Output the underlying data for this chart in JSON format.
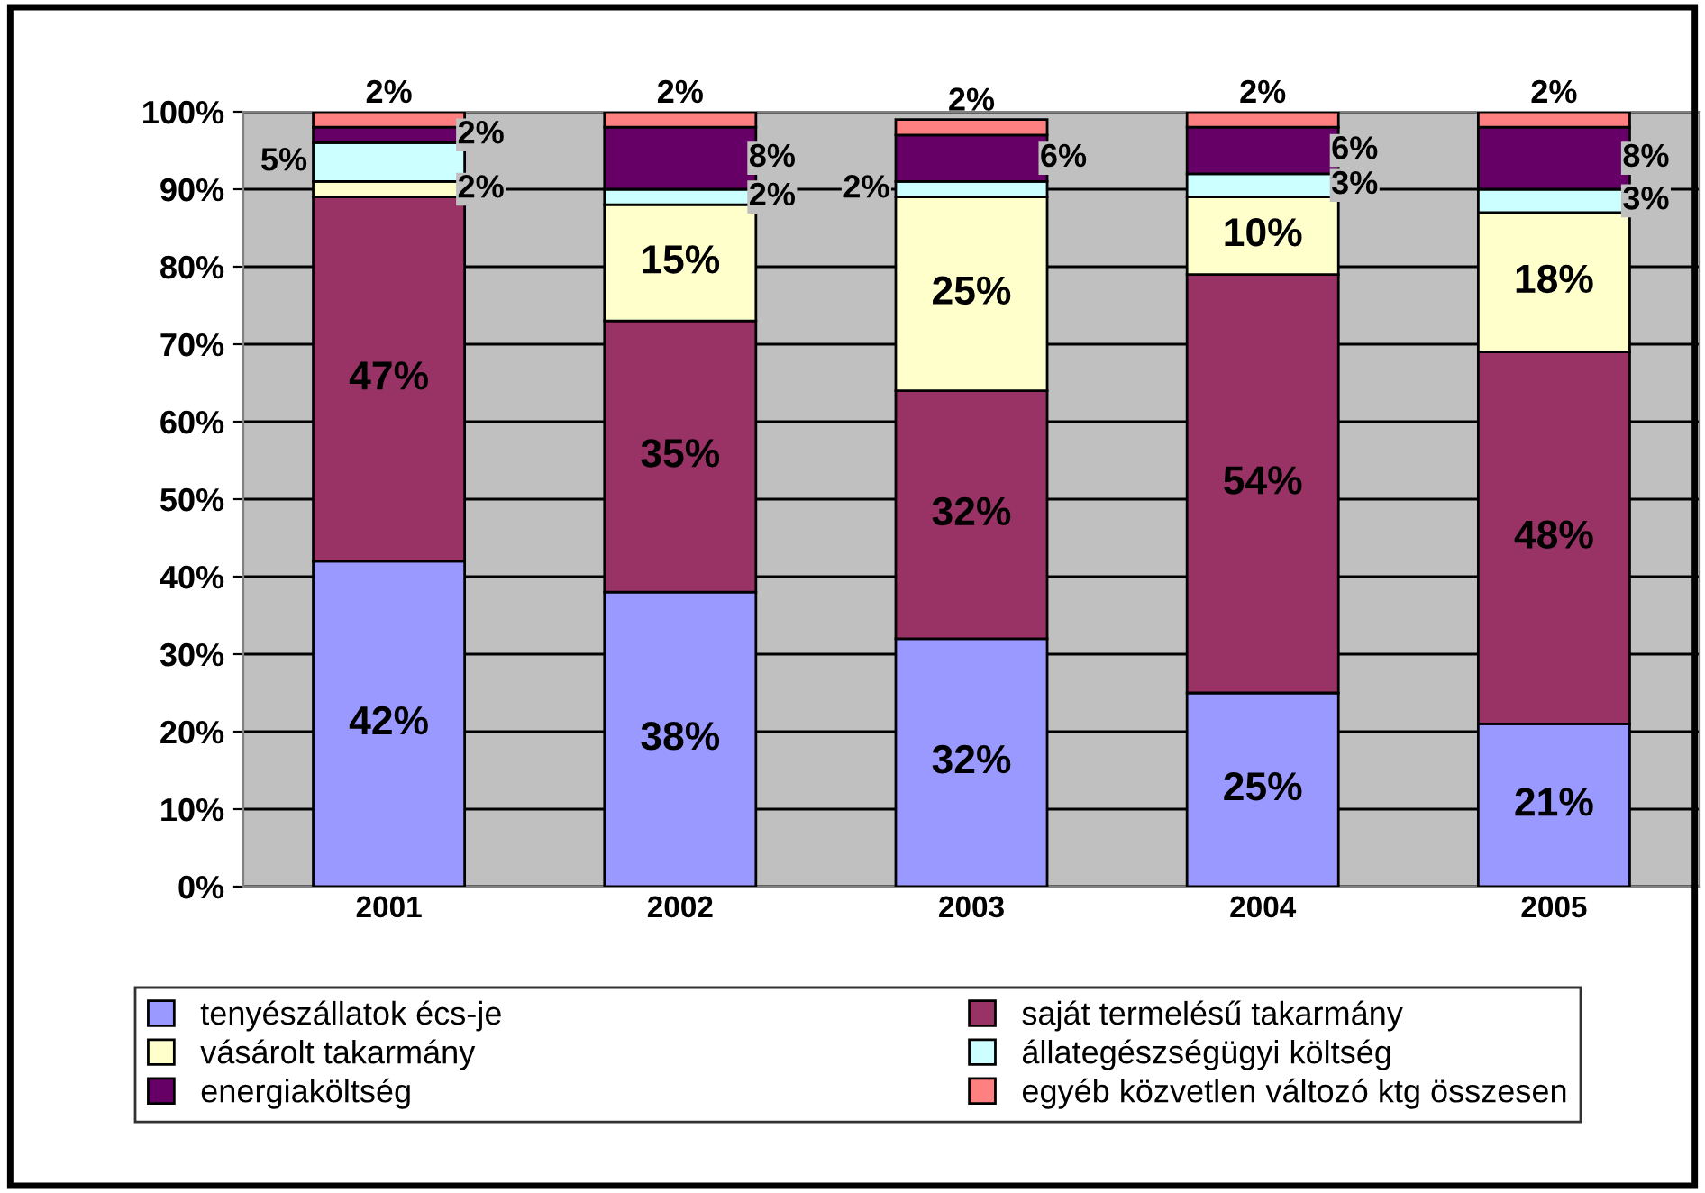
{
  "chart_data": {
    "type": "bar",
    "stacked": true,
    "categories": [
      "2001",
      "2002",
      "2003",
      "2004",
      "2005"
    ],
    "series": [
      {
        "name": "tenyészállatok écs-je",
        "color": "#9999ff",
        "values": [
          42,
          38,
          32,
          25,
          21
        ],
        "value_labels": [
          "42%",
          "38%",
          "32%",
          "25%",
          "21%"
        ]
      },
      {
        "name": "saját termelésű takarmány",
        "color": "#993366",
        "values": [
          47,
          35,
          32,
          54,
          48
        ],
        "value_labels": [
          "47%",
          "35%",
          "32%",
          "54%",
          "48%"
        ]
      },
      {
        "name": "vásárolt takarmány",
        "color": "#ffffcc",
        "values": [
          2,
          15,
          25,
          10,
          18
        ],
        "value_labels": [
          "2%",
          "15%",
          "25%",
          "10%",
          "18%"
        ]
      },
      {
        "name": "állategészségügyi költség",
        "color": "#ccffff",
        "values": [
          5,
          2,
          2,
          3,
          3
        ],
        "value_labels": [
          "5%",
          "2%",
          "2%",
          "3%",
          "3%"
        ]
      },
      {
        "name": "energiaköltség",
        "color": "#660066",
        "values": [
          2,
          8,
          6,
          6,
          8
        ],
        "value_labels": [
          "2%",
          "8%",
          "6%",
          "6%",
          "8%"
        ]
      },
      {
        "name": "egyéb közvetlen változó ktg összesen",
        "color": "#ff8080",
        "values": [
          2,
          2,
          2,
          2,
          2
        ],
        "value_labels": [
          "2%",
          "2%",
          "2%",
          "2%",
          "2%"
        ]
      }
    ],
    "ylim": [
      0,
      100
    ],
    "yticks": [
      {
        "value": 0,
        "label": "0%"
      },
      {
        "value": 10,
        "label": "10%"
      },
      {
        "value": 20,
        "label": "20%"
      },
      {
        "value": 30,
        "label": "30%"
      },
      {
        "value": 40,
        "label": "40%"
      },
      {
        "value": 50,
        "label": "50%"
      },
      {
        "value": 60,
        "label": "60%"
      },
      {
        "value": 70,
        "label": "70%"
      },
      {
        "value": 80,
        "label": "80%"
      },
      {
        "value": 90,
        "label": "90%"
      },
      {
        "value": 100,
        "label": "100%"
      }
    ],
    "grid": "y",
    "legend": "bottom"
  }
}
